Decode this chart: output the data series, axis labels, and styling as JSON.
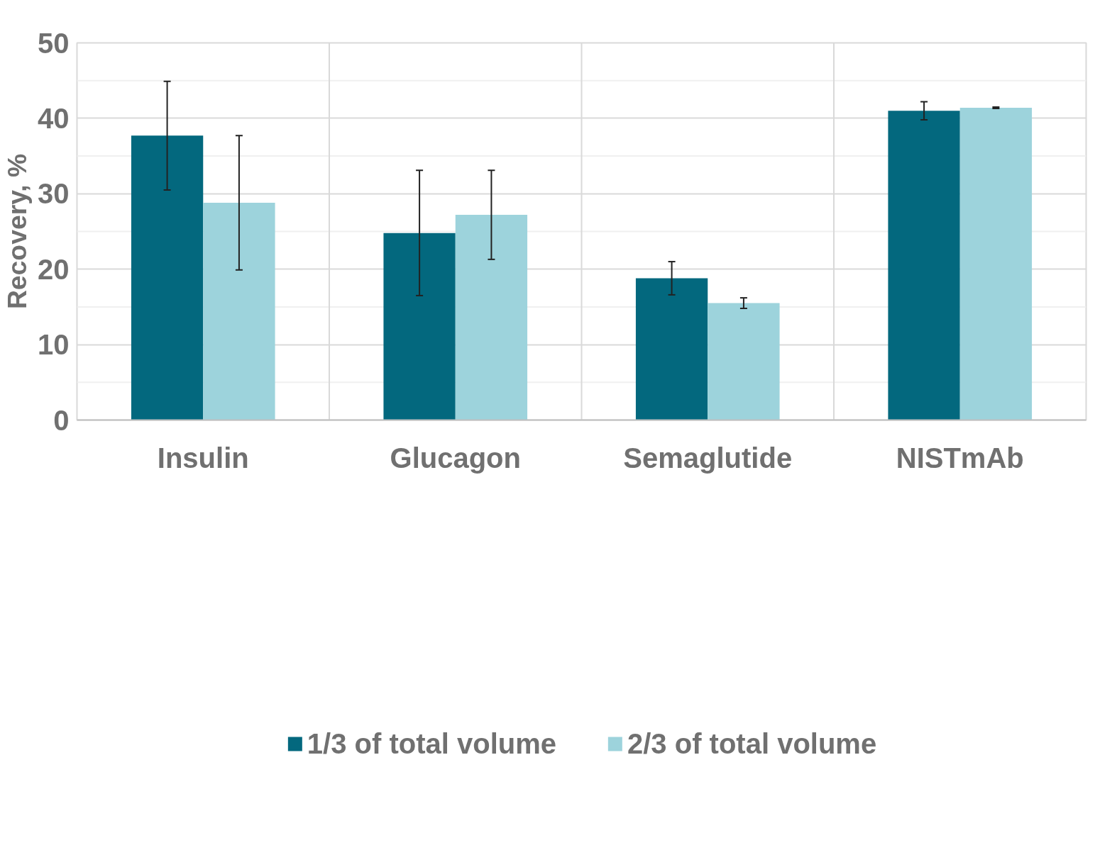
{
  "chart_data": {
    "type": "bar",
    "ylabel": "Recovery, %",
    "categories": [
      "Insulin",
      "Glucagon",
      "Semaglutide",
      "NISTmAb"
    ],
    "series": [
      {
        "name": "1/3 of total volume",
        "color": "#03687e",
        "values": [
          37.7,
          24.8,
          18.8,
          41.0
        ],
        "errors": [
          7.2,
          8.3,
          2.2,
          1.2
        ]
      },
      {
        "name": "2/3 of total volume",
        "color": "#9dd3dc",
        "values": [
          28.8,
          27.2,
          15.5,
          41.4
        ],
        "errors": [
          8.9,
          5.9,
          0.7,
          0.1
        ]
      }
    ],
    "ylim": [
      0,
      50
    ],
    "yticks": [
      0,
      {
        "value": 5,
        "label": null
      },
      10,
      {
        "value": 15,
        "label": null
      },
      20,
      {
        "value": 25,
        "label": null
      },
      30,
      {
        "value": 35,
        "label": null
      },
      40,
      {
        "value": 45,
        "label": null
      },
      50
    ],
    "grid": true,
    "legend": "bottom"
  }
}
